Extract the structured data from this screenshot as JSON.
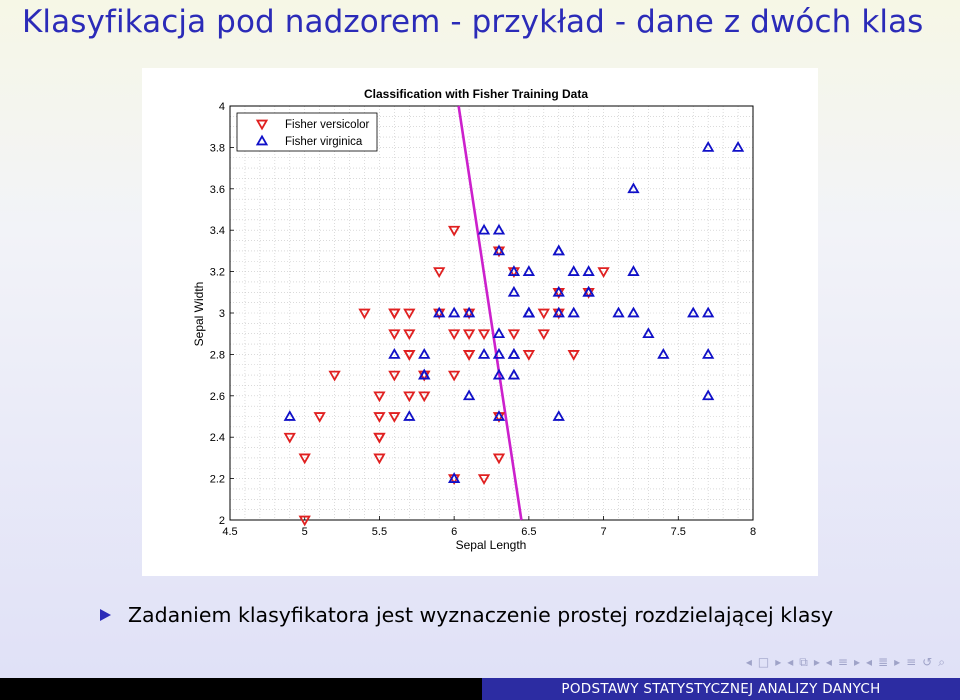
{
  "slide": {
    "title": "Klasyfikacja pod nadzorem - przykład - dane z dwóch klas",
    "bullet": "Zadaniem klasyfikatora jest wyznaczenie prostej rozdzielającej klasy",
    "footer": "PODSTAWY STATYSTYCZNEJ ANALIZY DANYCH",
    "colors": {
      "title": "#2b2bb8",
      "footer_blue": "#2c2ca2",
      "versicolor": "#e02020",
      "virginica": "#1010c8",
      "boundary": "#cc20cc"
    },
    "nav_icons": [
      "arrow-left-icon",
      "frame-icon",
      "arrow-right-icon",
      "arrow-left-icon",
      "frames-icon",
      "arrow-right-icon",
      "arrow-left-icon",
      "section-icon",
      "arrow-right-icon",
      "arrow-left-icon",
      "subsection-icon",
      "arrow-right-icon",
      "align-icon",
      "undo-icon",
      "search-icon"
    ]
  },
  "chart_data": {
    "type": "scatter",
    "title": "Classification with Fisher Training Data",
    "xlabel": "Sepal Length",
    "ylabel": "Sepal Width",
    "xlim": [
      4.5,
      8
    ],
    "ylim": [
      2,
      4
    ],
    "xticks": [
      "4.5",
      "5",
      "5.5",
      "6",
      "6.5",
      "7",
      "7.5",
      "8"
    ],
    "yticks": [
      "2",
      "2.2",
      "2.4",
      "2.6",
      "2.8",
      "3",
      "3.2",
      "3.4",
      "3.6",
      "3.8",
      "4"
    ],
    "grid": true,
    "legend_position": "top-left",
    "series": [
      {
        "name": "Fisher versicolor",
        "marker": "triangle-down",
        "color": "#e02020",
        "points": [
          [
            7.0,
            3.2
          ],
          [
            6.4,
            3.2
          ],
          [
            6.9,
            3.1
          ],
          [
            5.5,
            2.3
          ],
          [
            6.5,
            2.8
          ],
          [
            5.7,
            2.8
          ],
          [
            6.3,
            3.3
          ],
          [
            4.9,
            2.4
          ],
          [
            6.6,
            2.9
          ],
          [
            5.2,
            2.7
          ],
          [
            5.0,
            2.0
          ],
          [
            5.9,
            3.0
          ],
          [
            6.0,
            2.2
          ],
          [
            6.1,
            2.9
          ],
          [
            5.6,
            2.9
          ],
          [
            6.7,
            3.1
          ],
          [
            5.6,
            3.0
          ],
          [
            5.8,
            2.7
          ],
          [
            6.2,
            2.2
          ],
          [
            5.6,
            2.5
          ],
          [
            5.9,
            3.2
          ],
          [
            6.1,
            2.8
          ],
          [
            6.3,
            2.5
          ],
          [
            6.1,
            2.8
          ],
          [
            6.4,
            2.9
          ],
          [
            6.6,
            3.0
          ],
          [
            6.8,
            2.8
          ],
          [
            6.7,
            3.0
          ],
          [
            6.0,
            2.9
          ],
          [
            5.7,
            2.6
          ],
          [
            5.5,
            2.4
          ],
          [
            5.5,
            2.4
          ],
          [
            5.8,
            2.7
          ],
          [
            6.0,
            2.7
          ],
          [
            5.4,
            3.0
          ],
          [
            6.0,
            3.4
          ],
          [
            6.7,
            3.1
          ],
          [
            6.3,
            2.3
          ],
          [
            5.6,
            3.0
          ],
          [
            5.5,
            2.5
          ],
          [
            5.5,
            2.6
          ],
          [
            6.1,
            3.0
          ],
          [
            5.8,
            2.6
          ],
          [
            5.0,
            2.3
          ],
          [
            5.6,
            2.7
          ],
          [
            5.7,
            3.0
          ],
          [
            5.7,
            2.9
          ],
          [
            6.2,
            2.9
          ],
          [
            5.1,
            2.5
          ],
          [
            5.7,
            2.8
          ]
        ]
      },
      {
        "name": "Fisher virginica",
        "marker": "triangle-up",
        "color": "#1010c8",
        "points": [
          [
            6.3,
            3.3
          ],
          [
            5.8,
            2.7
          ],
          [
            7.1,
            3.0
          ],
          [
            6.3,
            2.9
          ],
          [
            6.5,
            3.0
          ],
          [
            7.6,
            3.0
          ],
          [
            4.9,
            2.5
          ],
          [
            7.3,
            2.9
          ],
          [
            6.7,
            2.5
          ],
          [
            7.2,
            3.6
          ],
          [
            6.5,
            3.2
          ],
          [
            6.4,
            2.7
          ],
          [
            6.8,
            3.0
          ],
          [
            5.7,
            2.5
          ],
          [
            5.8,
            2.8
          ],
          [
            6.4,
            3.2
          ],
          [
            6.5,
            3.0
          ],
          [
            7.7,
            3.8
          ],
          [
            7.7,
            2.6
          ],
          [
            6.0,
            2.2
          ],
          [
            6.9,
            3.2
          ],
          [
            5.6,
            2.8
          ],
          [
            7.7,
            2.8
          ],
          [
            6.3,
            2.7
          ],
          [
            6.7,
            3.3
          ],
          [
            7.2,
            3.2
          ],
          [
            6.2,
            2.8
          ],
          [
            6.1,
            3.0
          ],
          [
            6.4,
            2.8
          ],
          [
            7.2,
            3.0
          ],
          [
            7.4,
            2.8
          ],
          [
            7.9,
            3.8
          ],
          [
            6.4,
            2.8
          ],
          [
            6.3,
            2.8
          ],
          [
            6.1,
            2.6
          ],
          [
            7.7,
            3.0
          ],
          [
            6.3,
            3.4
          ],
          [
            6.4,
            3.1
          ],
          [
            6.0,
            3.0
          ],
          [
            6.9,
            3.1
          ],
          [
            6.7,
            3.1
          ],
          [
            6.9,
            3.1
          ],
          [
            5.8,
            2.7
          ],
          [
            6.8,
            3.2
          ],
          [
            6.7,
            3.3
          ],
          [
            6.7,
            3.0
          ],
          [
            6.3,
            2.5
          ],
          [
            6.5,
            3.0
          ],
          [
            6.2,
            3.4
          ],
          [
            5.9,
            3.0
          ]
        ]
      }
    ],
    "boundary_line": {
      "color": "#cc20cc",
      "points": [
        [
          6.03,
          4.0
        ],
        [
          6.45,
          2.0
        ]
      ]
    }
  }
}
